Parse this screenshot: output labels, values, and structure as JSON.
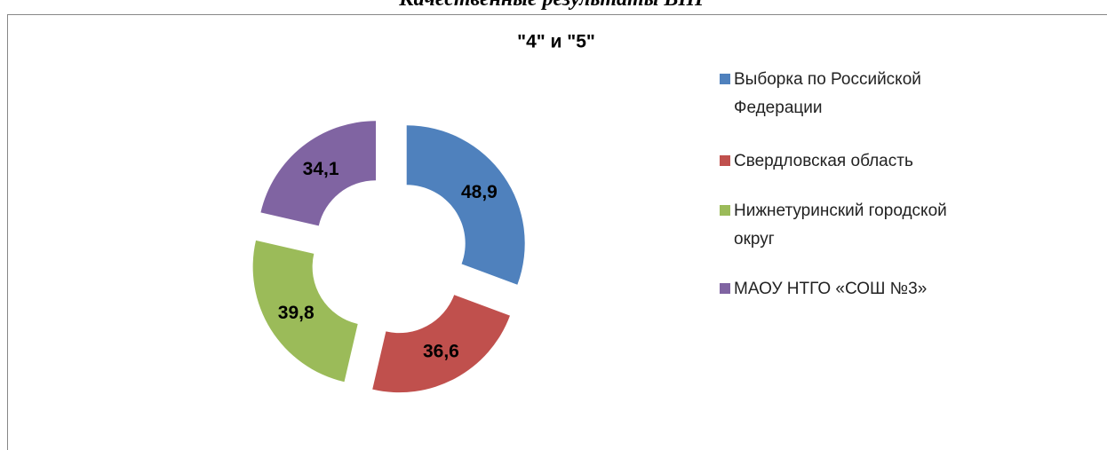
{
  "heading": "Качественные результаты ВПР",
  "chart_data": {
    "type": "doughnut",
    "title": "\"4\" и \"5\"",
    "categories": [
      "Выборка по Российской Федерации",
      "Свердловская область",
      "Нижнетуринский городской округ",
      "МАОУ НТГО «СОШ №3»"
    ],
    "values": [
      48.9,
      36.6,
      39.8,
      34.1
    ],
    "value_labels": [
      "48,9",
      "36,6",
      "39,8",
      "34,1"
    ],
    "colors": [
      "#4f81bd",
      "#c0504d",
      "#9bbb59",
      "#8064a2"
    ],
    "legend": "right"
  }
}
